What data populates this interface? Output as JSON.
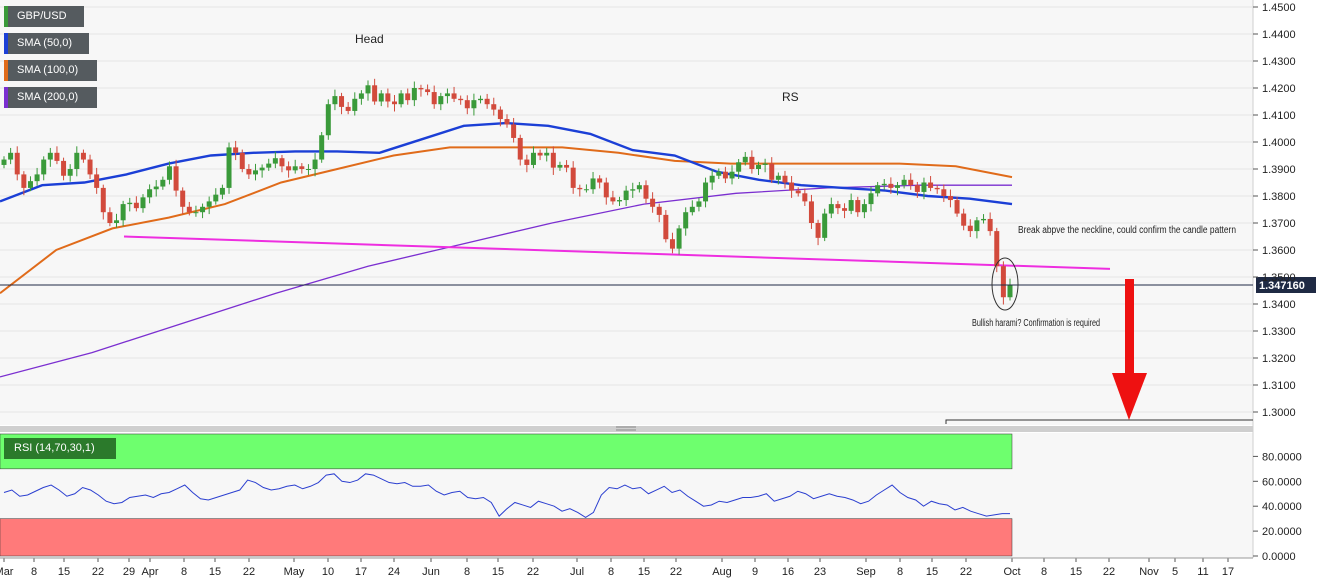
{
  "legend": {
    "symbol": "GBP/USD",
    "sma50": "SMA (50,0)",
    "sma100": "SMA (100,0)",
    "sma200": "SMA (200,0)",
    "rsi": "RSI (14,70,30,1)"
  },
  "colors": {
    "up": "#3a9a3a",
    "down": "#d24a3c",
    "sma50": "#1b3fd6",
    "sma100": "#e06b1a",
    "sma200": "#7b2fd0",
    "neckline": "#ee2ee0",
    "arrow": "#ee1111",
    "rsi_line": "#2b3fd0",
    "rsi_overbought": "#6eff6e",
    "rsi_oversold": "#ff7a7a"
  },
  "annotations": {
    "head": "Head",
    "rs": "RS",
    "breakout_note": "Break abpve the neckline, could confirm  the candle pattern",
    "harami_note": "Bullish harami? Confirmation is required"
  },
  "chart_data": {
    "type": "candlestick",
    "symbol": "GBP/USD",
    "last_price": "1.347160",
    "y_range": [
      1.296,
      1.45
    ],
    "y_ticks": [
      "1.4500",
      "1.4400",
      "1.4300",
      "1.4200",
      "1.4100",
      "1.4000",
      "1.3900",
      "1.3800",
      "1.3700",
      "1.3600",
      "1.3500",
      "1.3400",
      "1.3300",
      "1.3200",
      "1.3100",
      "1.3000"
    ],
    "x_labels": [
      "Mar",
      "8",
      "15",
      "22",
      "29",
      "Apr",
      "8",
      "15",
      "22",
      "May",
      "10",
      "17",
      "24",
      "Jun",
      "8",
      "15",
      "22",
      "Jul",
      "8",
      "15",
      "22",
      "Aug",
      "9",
      "16",
      "23",
      "Sep",
      "8",
      "15",
      "22",
      "Oct",
      "8",
      "15",
      "22",
      "Nov",
      "5",
      "11",
      "17"
    ],
    "sma_series": {
      "sma50": [
        1.378,
        1.384,
        1.385,
        1.388,
        1.392,
        1.395,
        1.396,
        1.3965,
        1.3965,
        1.396,
        1.401,
        1.406,
        1.407,
        1.406,
        1.403,
        1.397,
        1.395,
        1.389,
        1.386,
        1.384,
        1.383,
        1.382,
        1.38,
        1.379,
        1.377
      ],
      "sma100": [
        1.344,
        1.36,
        1.368,
        1.372,
        1.377,
        1.385,
        1.39,
        1.395,
        1.398,
        1.398,
        1.398,
        1.396,
        1.393,
        1.392,
        1.392,
        1.392,
        1.392,
        1.391,
        1.387
      ],
      "sma200": [
        1.313,
        1.322,
        1.333,
        1.344,
        1.354,
        1.362,
        1.37,
        1.377,
        1.381,
        1.383,
        1.384,
        1.384
      ]
    },
    "neckline": [
      1.365,
      1.353
    ],
    "dates": [
      "Mar 2",
      "Mar 3",
      "Mar 4",
      "Mar 5",
      "Mar 8",
      "Mar 9",
      "Mar 10",
      "Mar 11",
      "Mar 12",
      "Mar 15",
      "Mar 16",
      "Mar 17",
      "Mar 18",
      "Mar 19",
      "Mar 22",
      "Mar 23",
      "Mar 24",
      "Mar 25",
      "Mar 26",
      "Mar 29",
      "Mar 30",
      "Mar 31",
      "Apr 1",
      "Apr 2",
      "Apr 5",
      "Apr 6",
      "Apr 7",
      "Apr 8",
      "Apr 9",
      "Apr 12",
      "Apr 13",
      "Apr 14",
      "Apr 15",
      "Apr 16",
      "Apr 19",
      "Apr 20",
      "Apr 21",
      "Apr 22",
      "Apr 23",
      "Apr 26",
      "Apr 27",
      "Apr 28",
      "Apr 29",
      "Apr 30",
      "May 3",
      "May 4",
      "May 5",
      "May 6",
      "May 7",
      "May 10",
      "May 11",
      "May 12",
      "May 13",
      "May 14",
      "May 17",
      "May 18",
      "May 19",
      "May 20",
      "May 21",
      "May 24",
      "May 25",
      "May 26",
      "May 27",
      "May 28",
      "May 31",
      "Jun 1",
      "Jun 2",
      "Jun 3",
      "Jun 4",
      "Jun 7",
      "Jun 8",
      "Jun 9",
      "Jun 10",
      "Jun 11",
      "Jun 14",
      "Jun 15",
      "Jun 16",
      "Jun 17",
      "Jun 18",
      "Jun 21",
      "Jun 22",
      "Jun 23",
      "Jun 24",
      "Jun 25",
      "Jun 28",
      "Jun 29",
      "Jun 30",
      "Jul 1",
      "Jul 2",
      "Jul 5",
      "Jul 6",
      "Jul 7",
      "Jul 8",
      "Jul 9",
      "Jul 12",
      "Jul 13",
      "Jul 14",
      "Jul 15",
      "Jul 16",
      "Jul 19",
      "Jul 20",
      "Jul 21",
      "Jul 22",
      "Jul 23",
      "Jul 26",
      "Jul 27",
      "Jul 28",
      "Jul 29",
      "Jul 30",
      "Aug 2",
      "Aug 3",
      "Aug 4",
      "Aug 5",
      "Aug 6",
      "Aug 9",
      "Aug 10",
      "Aug 11",
      "Aug 12",
      "Aug 13",
      "Aug 16",
      "Aug 17",
      "Aug 18",
      "Aug 19",
      "Aug 20",
      "Aug 23",
      "Aug 24",
      "Aug 25",
      "Aug 26",
      "Aug 27",
      "Aug 30",
      "Aug 31",
      "Sep 1",
      "Sep 2",
      "Sep 3",
      "Sep 6",
      "Sep 7",
      "Sep 8",
      "Sep 9",
      "Sep 10",
      "Sep 13",
      "Sep 14",
      "Sep 15",
      "Sep 16",
      "Sep 17",
      "Sep 20",
      "Sep 21",
      "Sep 22",
      "Sep 23",
      "Sep 24",
      "Sep 27",
      "Sep 28",
      "Sep 29",
      "Sep 30"
    ],
    "closes": [
      1.3935,
      1.396,
      1.388,
      1.383,
      1.3855,
      1.388,
      1.3935,
      1.396,
      1.393,
      1.3875,
      1.39,
      1.396,
      1.3935,
      1.388,
      1.383,
      1.374,
      1.37,
      1.371,
      1.377,
      1.3775,
      1.3755,
      1.3795,
      1.3825,
      1.3835,
      1.386,
      1.391,
      1.382,
      1.376,
      1.374,
      1.374,
      1.376,
      1.378,
      1.3805,
      1.383,
      1.398,
      1.396,
      1.39,
      1.388,
      1.3895,
      1.3905,
      1.392,
      1.394,
      1.391,
      1.3895,
      1.391,
      1.39,
      1.39,
      1.3935,
      1.4025,
      1.414,
      1.417,
      1.413,
      1.4115,
      1.416,
      1.418,
      1.421,
      1.415,
      1.418,
      1.415,
      1.414,
      1.418,
      1.4155,
      1.42,
      1.4195,
      1.4185,
      1.414,
      1.417,
      1.418,
      1.416,
      1.4155,
      1.4125,
      1.4155,
      1.416,
      1.414,
      1.412,
      1.4085,
      1.4065,
      1.4015,
      1.3935,
      1.3915,
      1.396,
      1.395,
      1.396,
      1.3905,
      1.3915,
      1.3905,
      1.383,
      1.3825,
      1.3825,
      1.3865,
      1.385,
      1.3795,
      1.378,
      1.3785,
      1.382,
      1.3825,
      1.384,
      1.379,
      1.376,
      1.373,
      1.364,
      1.3605,
      1.368,
      1.374,
      1.376,
      1.378,
      1.385,
      1.3875,
      1.389,
      1.3865,
      1.389,
      1.3925,
      1.3945,
      1.39,
      1.3915,
      1.392,
      1.386,
      1.3875,
      1.385,
      1.382,
      1.381,
      1.378,
      1.37,
      1.3645,
      1.3735,
      1.377,
      1.3755,
      1.3745,
      1.3785,
      1.374,
      1.377,
      1.381,
      1.384,
      1.3845,
      1.383,
      1.384,
      1.386,
      1.384,
      1.3815,
      1.385,
      1.383,
      1.3825,
      1.38,
      1.3785,
      1.3735,
      1.369,
      1.367,
      1.371,
      1.3715,
      1.367,
      1.354,
      1.3425,
      1.347
    ]
  },
  "rsi": {
    "y_range": [
      0,
      100
    ],
    "y_ticks": [
      "80.0000",
      "60.0000",
      "40.0000",
      "20.0000",
      "0.0000"
    ],
    "overbought": 70,
    "oversold": 30,
    "values": [
      51,
      53,
      48,
      49,
      52,
      55,
      57,
      53,
      48,
      50,
      55,
      53,
      49,
      44,
      42,
      43,
      47,
      48,
      49,
      47,
      50,
      51,
      54,
      57,
      51,
      46,
      45,
      47,
      49,
      51,
      53,
      61,
      59,
      55,
      53,
      54,
      56,
      57,
      54,
      56,
      59,
      65,
      66,
      60,
      59,
      61,
      66,
      65,
      62,
      59,
      58,
      59,
      56,
      56,
      57,
      52,
      49,
      51,
      52,
      47,
      46,
      47,
      43,
      32,
      38,
      43,
      41,
      39,
      44,
      42,
      40,
      36,
      38,
      35,
      31,
      35,
      49,
      55,
      54,
      57,
      54,
      55,
      50,
      53,
      56,
      51,
      53,
      48,
      44,
      40,
      41,
      44,
      43,
      45,
      47,
      47,
      48,
      50,
      44,
      46,
      48,
      52,
      50,
      46,
      48,
      50,
      48,
      47,
      45,
      42,
      44,
      49,
      53,
      57,
      51,
      47,
      45,
      40,
      44,
      42,
      41,
      37,
      39,
      36,
      34,
      32,
      33,
      34,
      34
    ]
  }
}
